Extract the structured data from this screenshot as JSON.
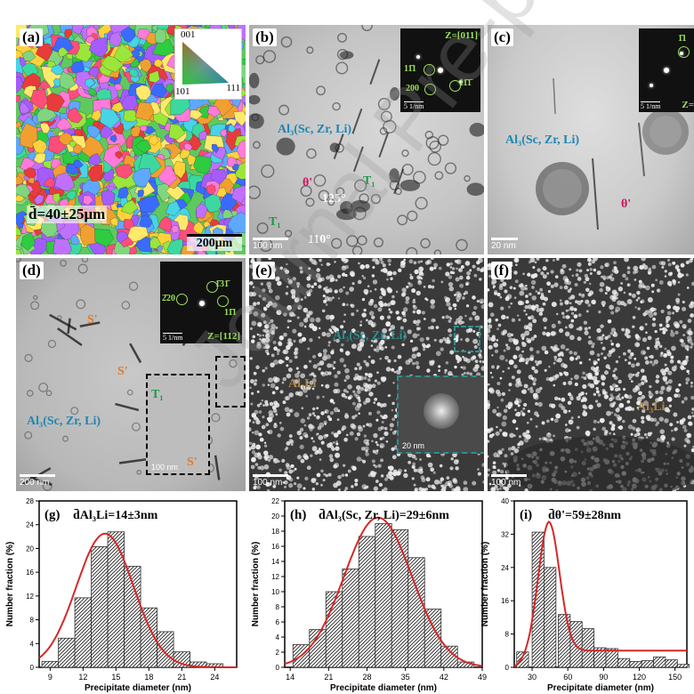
{
  "panels": {
    "a": {
      "label": "(a)",
      "grain_size": "d̄=40±25μm",
      "scale": "200μm",
      "ipf_001": "001",
      "ipf_101": "101",
      "ipf_111": "111"
    },
    "b": {
      "label": "(b)",
      "scale": "100 nm",
      "zone": "Z=[011]",
      "spot1": "11̄1",
      "spot2": "200",
      "spot3": "11̄1̄",
      "inset_scale": "5 1/nm",
      "precip": "Al₃(Sc, Zr, Li)",
      "theta": "θ'",
      "angle1": "125°",
      "angle2": "110°",
      "t1a": "T₁",
      "t1b": "T₁"
    },
    "c": {
      "label": "(c)",
      "scale": "20 nm",
      "zone": "Z=",
      "spot1": "1̄1",
      "inset_scale": "5 1/nm",
      "precip": "Al₃(Sc, Zr, Li)",
      "theta": "θ'"
    },
    "d": {
      "label": "(d)",
      "scale": "200 nm",
      "zone": "Z=[112]",
      "spot1": "2̄20",
      "spot2": "1̄31̄",
      "spot3": "11̄1",
      "inset_scale": "5 1/nm",
      "s1": "S'",
      "s2": "S'",
      "s3": "S'",
      "t1": "T₁",
      "precip": "Al₃(Sc, Zr, Li)",
      "zoom_scale": "100 nm"
    },
    "e": {
      "label": "(e)",
      "scale": "100 nm",
      "precip": "Al₃(Sc, Zr, Li)",
      "al3li": "Al₃Li",
      "zoom_scale": "20 nm"
    },
    "f": {
      "label": "(f)",
      "scale": "100 nm",
      "al3li": "Al₃Li"
    }
  },
  "watermark": "Journal Pre-proof",
  "chart_data": [
    {
      "type": "bar",
      "label": "(g)",
      "title": "d̄Al₃Li=14±3nm",
      "xlabel": "Precipitate diameter (nm)",
      "ylabel": "Number fraction (%)",
      "xlim": [
        8,
        26
      ],
      "ylim": [
        0,
        28
      ],
      "xticks": [
        9,
        12,
        15,
        18,
        21,
        24
      ],
      "yticks": [
        0,
        4,
        8,
        12,
        16,
        20,
        24,
        28
      ],
      "bin_width": 1.5,
      "x": [
        9,
        10.5,
        12,
        13.5,
        15,
        16.5,
        18,
        19.5,
        21,
        22.5,
        24
      ],
      "values": [
        1,
        4.9,
        11.7,
        20.3,
        22.8,
        17,
        10,
        6,
        2.6,
        0.9,
        0.6
      ],
      "fit": {
        "mean": 14,
        "sd": 2.6,
        "peak": 22.5,
        "color": "#d62728"
      }
    },
    {
      "type": "bar",
      "label": "(h)",
      "title": "d̄Al₃(Sc, Zr, Li)=29±6nm",
      "xlabel": "Precipitate diameter (nm)",
      "ylabel": "Number fraction (%)",
      "xlim": [
        13,
        49
      ],
      "ylim": [
        0,
        22
      ],
      "xticks": [
        14,
        21,
        28,
        35,
        42,
        49
      ],
      "yticks": [
        0,
        2,
        4,
        6,
        8,
        10,
        12,
        14,
        16,
        18,
        20,
        22
      ],
      "bin_width": 3,
      "x": [
        16,
        19,
        22,
        25,
        28,
        31,
        34,
        37,
        40,
        43,
        46
      ],
      "values": [
        3,
        5,
        10,
        13,
        17.3,
        19,
        18.2,
        14.5,
        7.7,
        2.8,
        0.7
      ],
      "fit": {
        "mean": 30,
        "sd": 6.2,
        "peak": 19.8,
        "color": "#d62728"
      }
    },
    {
      "type": "bar",
      "label": "(i)",
      "title": "d̄θ'=59±28nm",
      "xlabel": "Precipitate diameter (nm)",
      "ylabel": "Number fraction (%)",
      "xlim": [
        15,
        160
      ],
      "ylim": [
        0,
        40
      ],
      "xticks": [
        30,
        60,
        90,
        120,
        150
      ],
      "yticks": [
        0,
        8,
        16,
        24,
        32,
        40
      ],
      "bin_width": 10,
      "x": [
        22,
        35,
        45,
        57,
        67,
        77,
        87,
        97,
        107,
        117,
        127,
        137,
        147,
        157
      ],
      "values": [
        3.7,
        32.5,
        24,
        12.7,
        11,
        9.3,
        4.7,
        4.5,
        2.1,
        1.4,
        1.6,
        2.5,
        1.8,
        0.7
      ],
      "fit": {
        "mean": 44,
        "sd": 9,
        "peak": 31,
        "baseline": 4,
        "color": "#d62728"
      }
    }
  ]
}
